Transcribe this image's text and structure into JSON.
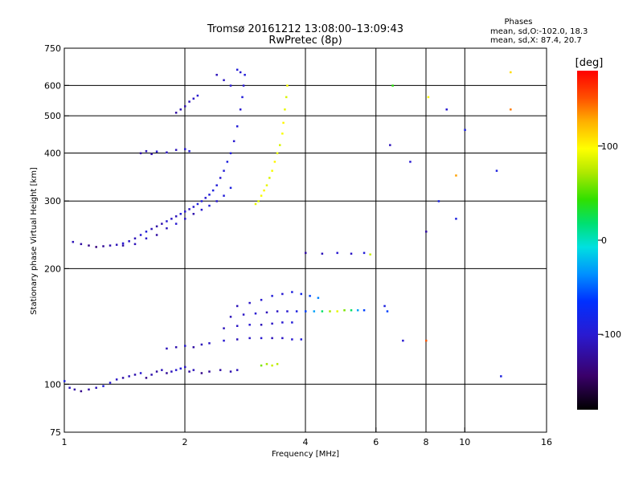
{
  "header": {
    "title_line1": "Tromsø 20161212 13:08:00–13:09:43",
    "title_line2": "RwPretec (8p)",
    "phase_title": "Phases",
    "phase_line1": "mean, sd,O:-102.0, 18.3",
    "phase_line2": "mean, sd,X:  87.4, 20.7"
  },
  "colorbar": {
    "unit": "deg",
    "min": -180,
    "max": 180,
    "ticks": [
      100,
      0,
      -100
    ],
    "tick_labels": [
      "100",
      "0",
      "-100"
    ]
  },
  "chart_data": {
    "type": "scatter",
    "title": "Tromsø 20161212 13:08:00–13:09:43",
    "subtitle": "RwPretec (8p)",
    "xlabel": "Frequency [MHz]",
    "ylabel": "Stationary phase Virtual Height [km]",
    "x_scale": "log",
    "y_scale": "log",
    "xlim": [
      1,
      16
    ],
    "ylim": [
      75,
      750
    ],
    "x_ticks": [
      1,
      2,
      4,
      6,
      8,
      10,
      16
    ],
    "x_tick_labels": [
      "1",
      "2",
      "4",
      "6",
      "8",
      "10",
      "16"
    ],
    "x_gridlines": [
      2,
      4,
      6,
      8,
      10
    ],
    "y_ticks": [
      75,
      100,
      200,
      300,
      400,
      500,
      600,
      750
    ],
    "y_tick_labels": [
      "75",
      "100",
      "200",
      "300",
      "400",
      "500",
      "600",
      "750"
    ],
    "y_gridlines": [
      100,
      200,
      300,
      400,
      500,
      600
    ],
    "grid": true,
    "color_by": "phase (deg)",
    "series": [
      {
        "points": [
          [
            1.0,
            102,
            -90
          ],
          [
            1.03,
            98,
            -110
          ],
          [
            1.06,
            97,
            -120
          ],
          [
            1.1,
            96,
            -130
          ],
          [
            1.15,
            97,
            -120
          ],
          [
            1.2,
            98,
            -110
          ],
          [
            1.25,
            99,
            -95
          ],
          [
            1.3,
            101,
            -100
          ],
          [
            1.35,
            103,
            -105
          ],
          [
            1.4,
            104,
            -120
          ],
          [
            1.45,
            105,
            -110
          ],
          [
            1.5,
            106,
            -115
          ],
          [
            1.55,
            107,
            -100
          ],
          [
            1.6,
            104,
            -130
          ],
          [
            1.65,
            106,
            -115
          ],
          [
            1.7,
            108,
            -120
          ],
          [
            1.75,
            109,
            -110
          ],
          [
            1.8,
            107,
            -125
          ],
          [
            1.85,
            108,
            -110
          ],
          [
            1.9,
            109,
            -100
          ],
          [
            1.95,
            110,
            -95
          ],
          [
            2.0,
            111,
            -105
          ],
          [
            2.05,
            108,
            -120
          ],
          [
            2.1,
            109,
            -110
          ],
          [
            2.2,
            107,
            -130
          ],
          [
            2.3,
            108,
            -125
          ],
          [
            2.45,
            109,
            -120
          ],
          [
            2.6,
            108,
            -115
          ],
          [
            2.7,
            109,
            -110
          ]
        ]
      },
      {
        "points": [
          [
            1.05,
            235,
            -110
          ],
          [
            1.1,
            232,
            -120
          ],
          [
            1.15,
            230,
            -130
          ],
          [
            1.2,
            228,
            -135
          ],
          [
            1.25,
            229,
            -125
          ],
          [
            1.3,
            230,
            -115
          ],
          [
            1.35,
            231,
            -110
          ],
          [
            1.4,
            233,
            -100
          ],
          [
            1.45,
            236,
            -105
          ],
          [
            1.5,
            240,
            -110
          ],
          [
            1.55,
            245,
            -100
          ],
          [
            1.6,
            250,
            -95
          ],
          [
            1.65,
            254,
            -110
          ],
          [
            1.7,
            258,
            -120
          ],
          [
            1.75,
            262,
            -115
          ],
          [
            1.8,
            266,
            -100
          ],
          [
            1.85,
            270,
            -105
          ],
          [
            1.9,
            274,
            -110
          ],
          [
            1.95,
            278,
            -95
          ],
          [
            2.0,
            282,
            -100
          ],
          [
            2.05,
            286,
            -105
          ],
          [
            2.1,
            290,
            -100
          ],
          [
            2.15,
            295,
            -90
          ],
          [
            2.2,
            300,
            -95
          ],
          [
            2.25,
            306,
            -100
          ],
          [
            2.3,
            312,
            -95
          ],
          [
            2.35,
            320,
            -90
          ],
          [
            2.4,
            330,
            -95
          ],
          [
            2.45,
            345,
            -100
          ],
          [
            2.5,
            360,
            -95
          ],
          [
            2.55,
            380,
            -90
          ],
          [
            2.6,
            400,
            -95
          ],
          [
            2.65,
            430,
            -100
          ],
          [
            2.7,
            470,
            -95
          ],
          [
            2.75,
            520,
            -100
          ],
          [
            2.78,
            560,
            -95
          ],
          [
            2.8,
            600,
            -100
          ],
          [
            2.82,
            640,
            -95
          ]
        ]
      },
      {
        "points": [
          [
            1.4,
            230,
            -120
          ],
          [
            1.5,
            232,
            -110
          ],
          [
            1.6,
            240,
            -105
          ],
          [
            1.7,
            245,
            -120
          ],
          [
            1.8,
            255,
            -110
          ],
          [
            1.9,
            262,
            -100
          ],
          [
            2.0,
            270,
            -105
          ],
          [
            2.1,
            278,
            -115
          ],
          [
            2.2,
            285,
            -100
          ],
          [
            2.3,
            292,
            -95
          ],
          [
            2.4,
            300,
            -100
          ],
          [
            2.5,
            310,
            -95
          ],
          [
            2.6,
            325,
            -90
          ]
        ]
      },
      {
        "points": [
          [
            1.55,
            400,
            -120
          ],
          [
            1.6,
            405,
            -110
          ],
          [
            1.65,
            398,
            -115
          ],
          [
            1.7,
            404,
            -100
          ],
          [
            1.8,
            402,
            -105
          ],
          [
            1.9,
            408,
            -110
          ],
          [
            2.0,
            410,
            -100
          ],
          [
            2.05,
            405,
            -95
          ]
        ]
      },
      {
        "points": [
          [
            1.9,
            510,
            -120
          ],
          [
            1.95,
            520,
            -110
          ],
          [
            2.0,
            530,
            -115
          ],
          [
            2.05,
            545,
            -110
          ],
          [
            2.1,
            555,
            -105
          ],
          [
            2.15,
            565,
            -100
          ]
        ]
      },
      {
        "points": [
          [
            2.4,
            640,
            -110
          ],
          [
            2.5,
            620,
            -105
          ],
          [
            2.6,
            600,
            -100
          ],
          [
            2.7,
            660,
            -95
          ],
          [
            2.75,
            650,
            -100
          ]
        ]
      },
      {
        "points": [
          [
            3.0,
            295,
            90
          ],
          [
            3.05,
            300,
            85
          ],
          [
            3.1,
            310,
            95
          ],
          [
            3.15,
            320,
            100
          ],
          [
            3.2,
            330,
            90
          ],
          [
            3.25,
            345,
            85
          ],
          [
            3.3,
            360,
            95
          ],
          [
            3.35,
            380,
            100
          ],
          [
            3.4,
            400,
            90
          ],
          [
            3.45,
            420,
            85
          ],
          [
            3.5,
            450,
            95
          ],
          [
            3.52,
            480,
            100
          ],
          [
            3.55,
            520,
            90
          ],
          [
            3.58,
            560,
            85
          ],
          [
            3.6,
            600,
            95
          ]
        ]
      },
      {
        "points": [
          [
            1.8,
            124,
            -110
          ],
          [
            1.9,
            125,
            -115
          ],
          [
            2.0,
            126,
            -100
          ],
          [
            2.1,
            125,
            -120
          ],
          [
            2.2,
            127,
            -110
          ],
          [
            2.3,
            128,
            -105
          ],
          [
            2.5,
            130,
            -100
          ],
          [
            2.7,
            131,
            -110
          ],
          [
            2.9,
            132,
            -105
          ],
          [
            3.1,
            132,
            -100
          ],
          [
            3.3,
            132,
            -110
          ],
          [
            3.5,
            132,
            -105
          ],
          [
            3.7,
            131,
            -100
          ],
          [
            3.9,
            131,
            -95
          ]
        ]
      },
      {
        "points": [
          [
            2.5,
            140,
            -110
          ],
          [
            2.7,
            142,
            -105
          ],
          [
            2.9,
            143,
            -100
          ],
          [
            3.1,
            143,
            -110
          ],
          [
            3.3,
            144,
            -105
          ],
          [
            3.5,
            145,
            -100
          ],
          [
            3.7,
            145,
            -95
          ]
        ]
      },
      {
        "points": [
          [
            2.6,
            150,
            -110
          ],
          [
            2.8,
            152,
            -105
          ],
          [
            3.0,
            153,
            -100
          ],
          [
            3.2,
            154,
            -110
          ],
          [
            3.4,
            155,
            -105
          ],
          [
            3.6,
            155,
            -100
          ],
          [
            3.8,
            155,
            -90
          ],
          [
            4.0,
            155,
            -60
          ],
          [
            4.2,
            155,
            -30
          ],
          [
            4.4,
            155,
            20
          ],
          [
            4.6,
            155,
            70
          ],
          [
            4.8,
            155,
            90
          ],
          [
            5.0,
            156,
            60
          ],
          [
            5.2,
            156,
            20
          ],
          [
            5.4,
            156,
            -30
          ],
          [
            5.6,
            156,
            -60
          ]
        ]
      },
      {
        "points": [
          [
            2.7,
            160,
            -110
          ],
          [
            2.9,
            163,
            -105
          ],
          [
            3.1,
            166,
            -100
          ],
          [
            3.3,
            170,
            -95
          ],
          [
            3.5,
            172,
            -100
          ],
          [
            3.7,
            174,
            -90
          ],
          [
            3.9,
            172,
            -80
          ],
          [
            4.1,
            170,
            -60
          ],
          [
            4.3,
            168,
            -40
          ]
        ]
      },
      {
        "points": [
          [
            3.1,
            112,
            60
          ],
          [
            3.2,
            113,
            70
          ],
          [
            3.3,
            112,
            80
          ],
          [
            3.4,
            113,
            75
          ]
        ]
      },
      {
        "points": [
          [
            4.0,
            220,
            -120
          ],
          [
            4.4,
            219,
            -110
          ],
          [
            4.8,
            220,
            -100
          ],
          [
            5.2,
            219,
            -105
          ],
          [
            5.6,
            220,
            -95
          ],
          [
            5.8,
            218,
            80
          ]
        ]
      },
      {
        "points": [
          [
            6.3,
            160,
            -90
          ],
          [
            6.4,
            155,
            -60
          ],
          [
            6.5,
            420,
            -110
          ],
          [
            6.6,
            600,
            40
          ],
          [
            7.0,
            130,
            -100
          ],
          [
            7.3,
            380,
            -100
          ],
          [
            8.0,
            130,
            150
          ],
          [
            8.0,
            250,
            -120
          ],
          [
            8.1,
            560,
            100
          ],
          [
            8.6,
            300,
            -90
          ],
          [
            9.0,
            520,
            -100
          ],
          [
            9.5,
            270,
            -90
          ],
          [
            9.5,
            350,
            130
          ],
          [
            10.0,
            460,
            -90
          ],
          [
            12.0,
            360,
            -90
          ],
          [
            12.3,
            105,
            -90
          ],
          [
            13.0,
            650,
            110
          ],
          [
            13.0,
            520,
            140
          ]
        ]
      }
    ]
  },
  "axes": {
    "xlabel": "Frequency [MHz]",
    "ylabel": "Stationary phase Virtual Height [km]"
  }
}
